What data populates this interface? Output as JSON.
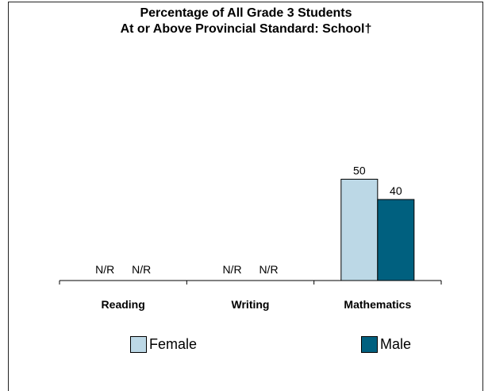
{
  "chart_data": {
    "type": "bar",
    "title_line1": "Percentage of All Grade 3 Students",
    "title_line2": "At or Above Provincial Standard: School†",
    "categories": [
      "Reading",
      "Writing",
      "Mathematics"
    ],
    "series": [
      {
        "name": "Female",
        "color": "#bcd8e6",
        "values": [
          null,
          null,
          50
        ],
        "labels": [
          "N/R",
          "N/R",
          "50"
        ]
      },
      {
        "name": "Male",
        "color": "#00607f",
        "values": [
          null,
          null,
          40
        ],
        "labels": [
          "N/R",
          "N/R",
          "40"
        ]
      }
    ],
    "ylim": [
      0,
      100
    ],
    "grid": false,
    "legend_position": "bottom"
  }
}
